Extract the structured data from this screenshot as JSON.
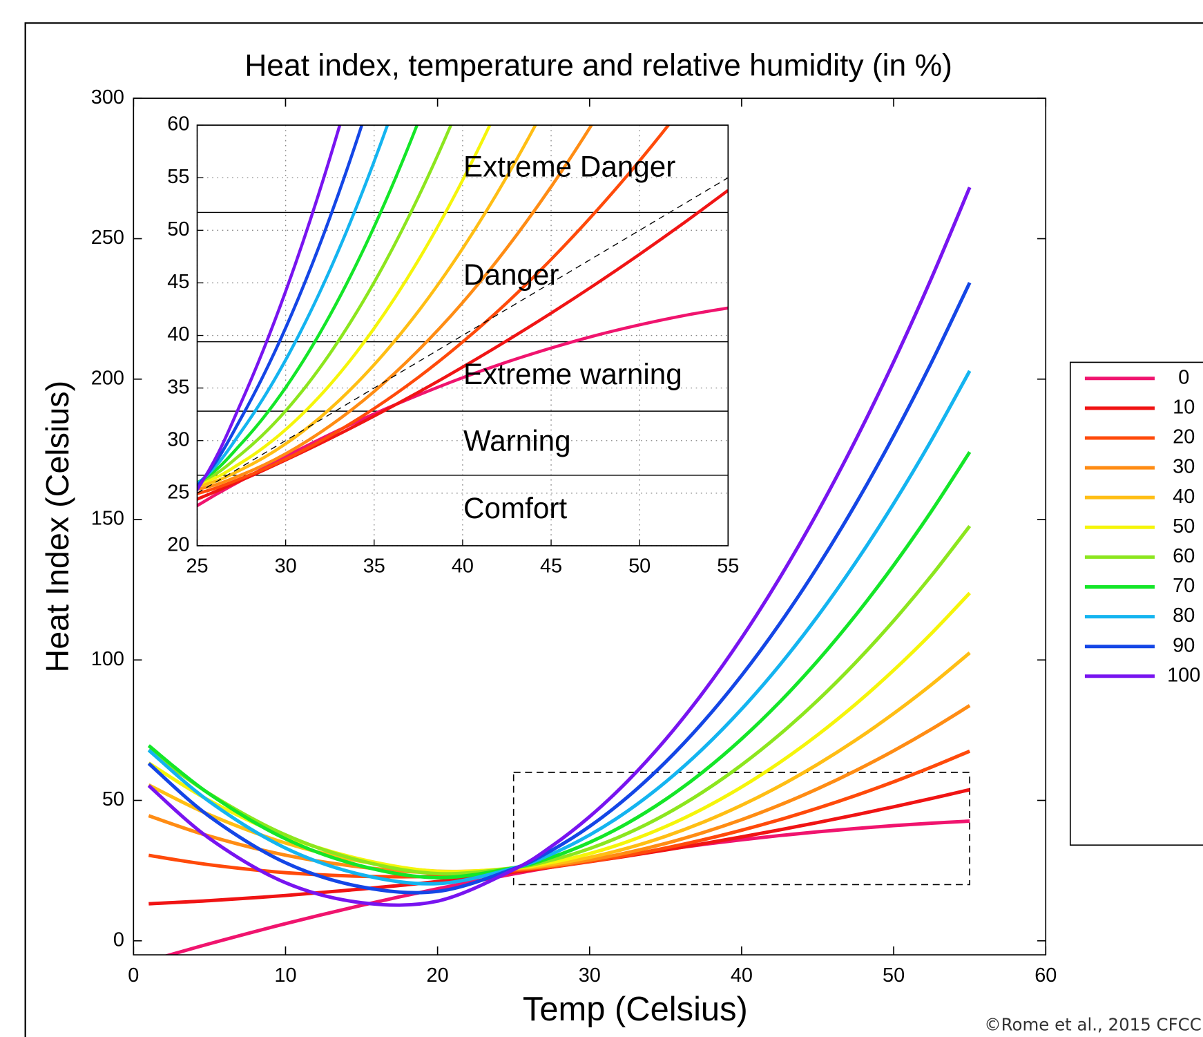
{
  "chart_data": [
    {
      "type": "line",
      "title": "Heat index, temperature and relative humidity (in %)",
      "x_label": "Temp (Celsius)",
      "y_label": "Heat Index (Celsius)",
      "x": [
        1,
        5,
        10,
        15,
        20,
        25,
        27.5,
        30,
        32.5,
        35,
        37.5,
        40,
        42.5,
        45,
        47.5,
        50,
        52.5,
        55
      ],
      "series": [
        {
          "name": "0",
          "color": "#f0146e",
          "values": [
            -7.19,
            -1.04,
            6.1,
            12.62,
            18.52,
            23.81,
            26.22,
            28.48,
            30.59,
            32.54,
            34.33,
            35.98,
            37.47,
            38.8,
            39.99,
            41.01,
            41.89,
            42.61
          ]
        },
        {
          "name": "10",
          "color": "#f01414",
          "values": [
            13.19,
            14.31,
            16.13,
            18.43,
            21.09,
            24.43,
            26.23,
            28.15,
            30.18,
            32.33,
            34.6,
            36.99,
            39.5,
            42.12,
            44.86,
            47.72,
            50.7,
            53.8
          ]
        },
        {
          "name": "20",
          "color": "#ff4a0a",
          "values": [
            30.43,
            27.08,
            24.26,
            22.97,
            23,
            24.96,
            26.41,
            28.24,
            30.45,
            33.05,
            36.02,
            39.38,
            43.11,
            47.23,
            51.73,
            56.61,
            61.88,
            67.52
          ]
        },
        {
          "name": "30",
          "color": "#ff8c14",
          "values": [
            44.52,
            37.26,
            30.48,
            26.24,
            24.23,
            25.37,
            26.74,
            28.75,
            31.4,
            34.67,
            38.59,
            43.13,
            48.32,
            54.14,
            60.59,
            67.68,
            75.41,
            83.77
          ]
        },
        {
          "name": "40",
          "color": "#ffbe14",
          "values": [
            55.48,
            44.88,
            34.8,
            28.24,
            24.8,
            25.68,
            27.25,
            29.69,
            33.01,
            37.22,
            42.3,
            48.27,
            55.11,
            62.84,
            71.44,
            80.93,
            91.29,
            102.54
          ]
        },
        {
          "name": "50",
          "color": "#f5f50a",
          "values": [
            63.29,
            49.91,
            37.21,
            28.97,
            24.7,
            25.89,
            27.91,
            31.05,
            35.3,
            40.68,
            47.16,
            54.77,
            63.49,
            73.33,
            84.28,
            96.35,
            109.54,
            123.84
          ]
        },
        {
          "name": "60",
          "color": "#8ce61e",
          "values": [
            67.96,
            52.37,
            37.71,
            28.43,
            23.92,
            25.99,
            28.74,
            32.83,
            38.27,
            45.05,
            53.17,
            62.64,
            73.46,
            85.61,
            99.11,
            113.96,
            130.14,
            147.67
          ]
        },
        {
          "name": "70",
          "color": "#14e628",
          "values": [
            69.5,
            52.25,
            36.31,
            26.62,
            22.48,
            25.98,
            29.73,
            35.04,
            41.91,
            50.34,
            60.33,
            71.89,
            85.01,
            99.69,
            115.93,
            133.74,
            153.11,
            174.03
          ]
        },
        {
          "name": "80",
          "color": "#14b4f0",
          "values": [
            67.89,
            49.55,
            33,
            23.54,
            20.36,
            25.87,
            30.89,
            37.67,
            46.22,
            56.55,
            68.64,
            82.51,
            98.15,
            115.56,
            134.74,
            155.7,
            178.42,
            202.92
          ]
        },
        {
          "name": "90",
          "color": "#1446e6",
          "values": [
            63.14,
            44.27,
            27.79,
            19.19,
            17.58,
            25.66,
            32.2,
            40.72,
            51.21,
            63.67,
            78.1,
            94.5,
            112.88,
            133.23,
            155.55,
            179.84,
            206.1,
            234.33
          ]
        },
        {
          "name": "100",
          "color": "#7814f0",
          "values": [
            55.25,
            36.42,
            20.67,
            13.57,
            14.13,
            25.34,
            33.68,
            44.2,
            56.87,
            71.71,
            88.71,
            107.87,
            129.2,
            152.69,
            178.34,
            206.16,
            236.14,
            268.28
          ]
        }
      ],
      "xlim": [
        0,
        60
      ],
      "ylim": [
        -5,
        300
      ],
      "xticks": [
        0,
        10,
        20,
        30,
        40,
        50,
        60
      ],
      "yticks": [
        0,
        50,
        100,
        150,
        200,
        250,
        300
      ],
      "legend": "right",
      "zoom_box": {
        "xlim": [
          25,
          55
        ],
        "ylim": [
          20,
          60
        ]
      }
    },
    {
      "type": "line",
      "xlim": [
        25,
        55
      ],
      "ylim": [
        20,
        60
      ],
      "xticks": [
        25,
        30,
        35,
        40,
        45,
        50,
        55
      ],
      "yticks": [
        20,
        25,
        30,
        35,
        40,
        45,
        50,
        55,
        60
      ],
      "grid": true,
      "thresholds": [
        26.7,
        32.8,
        39.4,
        51.7
      ],
      "zones": [
        "Comfort",
        "Warning",
        "Extreme warning",
        "Danger",
        "Extreme Danger"
      ],
      "diagonal": {
        "x": [
          25,
          55
        ],
        "y": [
          25,
          55
        ]
      }
    }
  ],
  "credit": "©Rome et al., 2015 CFCC"
}
